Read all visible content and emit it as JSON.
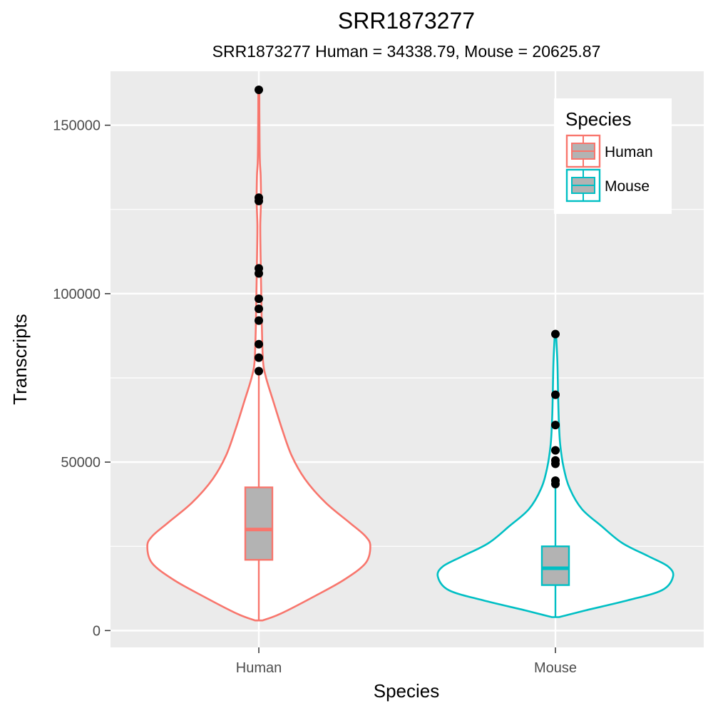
{
  "chart_data": {
    "type": "violin",
    "title": "SRR1873277",
    "subtitle": "SRR1873277 Human = 34338.79, Mouse = 20625.87",
    "xlabel": "Species",
    "ylabel": "Transcripts",
    "categories": [
      "Human",
      "Mouse"
    ],
    "ylim": [
      -5000,
      166000
    ],
    "yticks": [
      0,
      50000,
      100000,
      150000
    ],
    "yminor": [
      25000,
      75000,
      125000
    ],
    "grid": true,
    "legend": {
      "title": "Species",
      "position": "top-right",
      "entries": [
        "Human",
        "Mouse"
      ]
    },
    "colors": {
      "Human": "#F8766D",
      "Mouse": "#00BFC4",
      "box_fill": "#B3B3B3",
      "panel": "#EBEBEB",
      "outlier": "#000000"
    },
    "series": [
      {
        "name": "Human",
        "box": {
          "min": 3000,
          "q1": 21000,
          "median": 30000,
          "q3": 42500,
          "max": 77000
        },
        "outliers": [
          160500,
          128500,
          127500,
          107500,
          106000,
          98500,
          95500,
          92000,
          85000,
          81000,
          77000
        ],
        "density": [
          [
            3000,
            0.03
          ],
          [
            5000,
            0.18
          ],
          [
            10000,
            0.45
          ],
          [
            15000,
            0.7
          ],
          [
            20000,
            0.88
          ],
          [
            25000,
            0.92
          ],
          [
            28000,
            0.88
          ],
          [
            32000,
            0.75
          ],
          [
            38000,
            0.55
          ],
          [
            45000,
            0.38
          ],
          [
            52000,
            0.27
          ],
          [
            60000,
            0.19
          ],
          [
            68000,
            0.12
          ],
          [
            75000,
            0.06
          ],
          [
            80000,
            0.035
          ],
          [
            90000,
            0.025
          ],
          [
            100000,
            0.02
          ],
          [
            110000,
            0.015
          ],
          [
            120000,
            0.012
          ],
          [
            128000,
            0.018
          ],
          [
            135000,
            0.015
          ],
          [
            140000,
            0.008
          ],
          [
            150000,
            0.005
          ],
          [
            160500,
            0.004
          ]
        ]
      },
      {
        "name": "Mouse",
        "box": {
          "min": 4000,
          "q1": 13500,
          "median": 18500,
          "q3": 25000,
          "max": 43500
        },
        "outliers": [
          88000,
          70000,
          61000,
          53500,
          50500,
          49500,
          44500,
          43500
        ],
        "density": [
          [
            4000,
            0.03
          ],
          [
            6000,
            0.25
          ],
          [
            9000,
            0.6
          ],
          [
            12000,
            0.88
          ],
          [
            16000,
            0.97
          ],
          [
            19000,
            0.93
          ],
          [
            22000,
            0.77
          ],
          [
            26000,
            0.55
          ],
          [
            31000,
            0.38
          ],
          [
            36000,
            0.22
          ],
          [
            42000,
            0.12
          ],
          [
            48000,
            0.07
          ],
          [
            55000,
            0.04
          ],
          [
            62000,
            0.028
          ],
          [
            70000,
            0.022
          ],
          [
            80000,
            0.016
          ],
          [
            88000,
            0.005
          ]
        ]
      }
    ]
  }
}
